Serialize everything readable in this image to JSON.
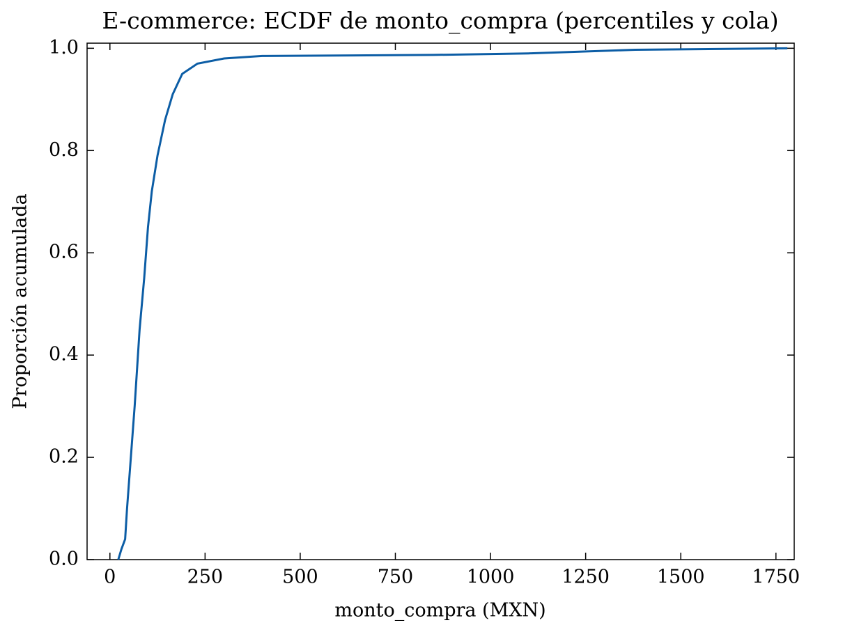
{
  "chart_data": {
    "type": "line",
    "title": "E-commerce: ECDF de monto_compra (percentiles y cola)",
    "xlabel": "monto_compra (MXN)",
    "ylabel": "Proporción acumulada",
    "x": [
      22,
      30,
      40,
      45,
      55,
      65,
      78,
      90,
      100,
      110,
      125,
      145,
      165,
      190,
      230,
      300,
      400,
      850,
      1100,
      1380,
      1780
    ],
    "values": [
      0,
      0.02,
      0.04,
      0.1,
      0.2,
      0.3,
      0.45,
      0.55,
      0.65,
      0.72,
      0.79,
      0.86,
      0.91,
      0.95,
      0.97,
      0.98,
      0.985,
      0.987,
      0.99,
      0.997,
      1.0
    ],
    "color": "#0C5DA5",
    "xlim": [
      -60,
      1798
    ],
    "ylim": [
      0,
      1.01
    ],
    "xticks": [
      0,
      250,
      500,
      750,
      1000,
      1250,
      1500,
      1750
    ],
    "yticks": [
      {
        "value": 0,
        "label": "0.0"
      },
      {
        "value": 0.2,
        "label": "0.2"
      },
      {
        "value": 0.4,
        "label": "0.4"
      },
      {
        "value": 0.6,
        "label": "0.6"
      },
      {
        "value": 0.8,
        "label": "0.8"
      },
      {
        "value": 1.0,
        "label": "1.0"
      }
    ]
  }
}
